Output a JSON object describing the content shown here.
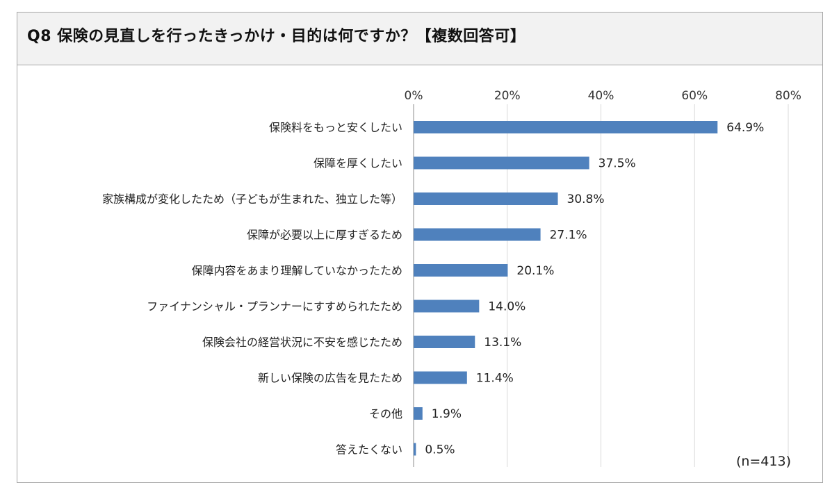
{
  "title": "Q8 保険の見直しを行ったきっかけ・目的は何ですか？【複数回答可】",
  "colors": {
    "bar": "#4f81bd",
    "grid": "#d9d9d9",
    "axis": "#8c8c8c"
  },
  "chart_data": {
    "type": "bar",
    "orientation": "horizontal",
    "title": "Q8 保険の見直しを行ったきっかけ・目的は何ですか？【複数回答可】",
    "categories": [
      "保険料をもっと安くしたい",
      "保障を厚くしたい",
      "家族構成が変化したため（子どもが生まれた、独立した等）",
      "保障が必要以上に厚すぎるため",
      "保障内容をあまり理解していなかったため",
      "ファイナンシャル・プランナーにすすめられたため",
      "保険会社の経営状況に不安を感じたため",
      "新しい保険の広告を見たため",
      "その他",
      "答えたくない"
    ],
    "values": [
      64.9,
      37.5,
      30.8,
      27.1,
      20.1,
      14.0,
      13.1,
      11.4,
      1.9,
      0.5
    ],
    "value_labels": [
      "64.9%",
      "37.5%",
      "30.8%",
      "27.1%",
      "20.1%",
      "14.0%",
      "13.1%",
      "11.4%",
      "1.9%",
      "0.5%"
    ],
    "xlim": [
      0,
      80
    ],
    "xticks": [
      0,
      20,
      40,
      60,
      80
    ],
    "xtick_labels": [
      "0%",
      "20%",
      "40%",
      "60%",
      "80%"
    ],
    "axis_position": "top",
    "grid": true,
    "note": "(n=413)"
  }
}
